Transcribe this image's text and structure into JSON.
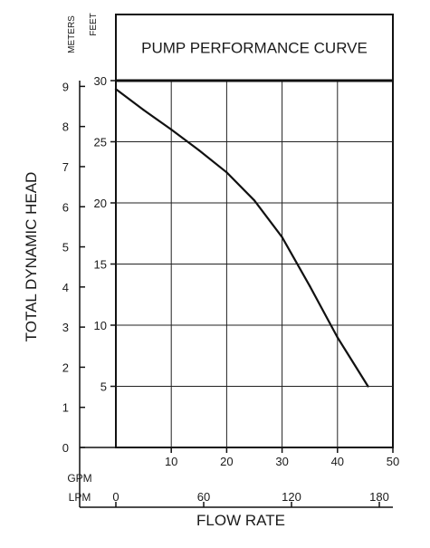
{
  "chart_data": {
    "type": "line",
    "title": "PUMP PERFORMANCE CURVE",
    "ylabel": "TOTAL DYNAMIC HEAD",
    "xlabel": "FLOW RATE",
    "y_axes": {
      "meters": {
        "label": "METERS",
        "ticks": [
          0,
          1,
          2,
          3,
          4,
          5,
          6,
          7,
          8,
          9
        ]
      },
      "feet": {
        "label": "FEET",
        "ticks": [
          5,
          10,
          15,
          20,
          25,
          30
        ],
        "ylim": [
          0,
          30
        ]
      }
    },
    "x_axes": {
      "gpm": {
        "label": "GPM",
        "ticks": [
          10,
          20,
          30,
          40,
          50
        ],
        "xlim": [
          0,
          50
        ]
      },
      "lpm": {
        "label": "LPM",
        "ticks": [
          0,
          60,
          120,
          180
        ]
      }
    },
    "grid": true,
    "series": [
      {
        "x": [
          0,
          5,
          10,
          15,
          20,
          25,
          30,
          35,
          40,
          45.5
        ],
        "y": [
          29.3,
          27.6,
          26.0,
          24.3,
          22.5,
          20.2,
          17.2,
          13.2,
          9.0,
          5.0
        ]
      }
    ]
  }
}
